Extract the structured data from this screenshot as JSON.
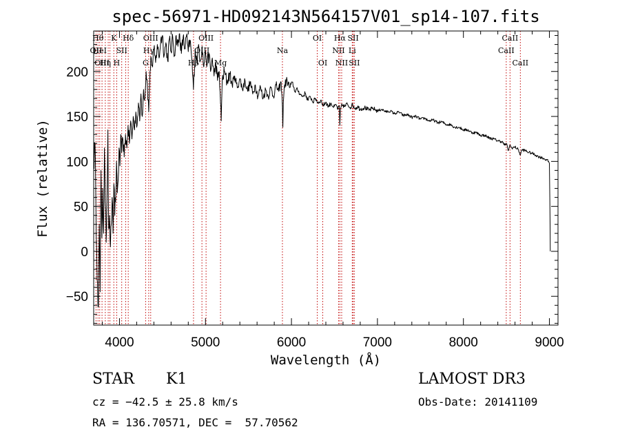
{
  "chart_data": {
    "type": "line",
    "title": "spec-56971-HD092143N564157V01_sp14-107.fits",
    "xlabel": "Wavelength (Å)",
    "ylabel": "Flux (relative)",
    "xlim": [
      3700,
      9100
    ],
    "ylim": [
      -82,
      245
    ],
    "xticks": [
      4000,
      5000,
      6000,
      7000,
      8000,
      9000
    ],
    "yticks": [
      -50,
      0,
      50,
      100,
      150,
      200
    ],
    "series": [
      {
        "name": "flux",
        "points": [
          [
            3700,
            95
          ],
          [
            3715,
            120
          ],
          [
            3725,
            60
          ],
          [
            3735,
            0
          ],
          [
            3745,
            -35
          ],
          [
            3755,
            -62
          ],
          [
            3765,
            30
          ],
          [
            3775,
            -45
          ],
          [
            3785,
            90
          ],
          [
            3795,
            15
          ],
          [
            3805,
            70
          ],
          [
            3815,
            20
          ],
          [
            3825,
            115
          ],
          [
            3835,
            55
          ],
          [
            3845,
            10
          ],
          [
            3855,
            60
          ],
          [
            3865,
            135
          ],
          [
            3875,
            25
          ],
          [
            3885,
            40
          ],
          [
            3895,
            5
          ],
          [
            3905,
            30
          ],
          [
            3915,
            60
          ],
          [
            3925,
            20
          ],
          [
            3935,
            75
          ],
          [
            3945,
            40
          ],
          [
            3955,
            55
          ],
          [
            3965,
            100
          ],
          [
            3975,
            65
          ],
          [
            3985,
            80
          ],
          [
            3995,
            115
          ],
          [
            4005,
            95
          ],
          [
            4015,
            130
          ],
          [
            4025,
            110
          ],
          [
            4040,
            125
          ],
          [
            4055,
            105
          ],
          [
            4070,
            130
          ],
          [
            4085,
            115
          ],
          [
            4100,
            140
          ],
          [
            4115,
            120
          ],
          [
            4130,
            145
          ],
          [
            4145,
            125
          ],
          [
            4160,
            150
          ],
          [
            4175,
            135
          ],
          [
            4190,
            155
          ],
          [
            4205,
            140
          ],
          [
            4220,
            165
          ],
          [
            4235,
            145
          ],
          [
            4250,
            175
          ],
          [
            4265,
            150
          ],
          [
            4280,
            180
          ],
          [
            4295,
            170
          ],
          [
            4310,
            200
          ],
          [
            4325,
            185
          ],
          [
            4340,
            155
          ],
          [
            4355,
            200
          ],
          [
            4370,
            215
          ],
          [
            4385,
            205
          ],
          [
            4400,
            225
          ],
          [
            4420,
            210
          ],
          [
            4440,
            230
          ],
          [
            4460,
            215
          ],
          [
            4480,
            235
          ],
          [
            4500,
            240
          ],
          [
            4520,
            218
          ],
          [
            4540,
            232
          ],
          [
            4560,
            212
          ],
          [
            4580,
            236
          ],
          [
            4600,
            222
          ],
          [
            4620,
            238
          ],
          [
            4640,
            218
          ],
          [
            4660,
            240
          ],
          [
            4680,
            228
          ],
          [
            4700,
            242
          ],
          [
            4720,
            220
          ],
          [
            4740,
            238
          ],
          [
            4760,
            225
          ],
          [
            4780,
            240
          ],
          [
            4800,
            222
          ],
          [
            4820,
            235
          ],
          [
            4840,
            215
          ],
          [
            4860,
            180
          ],
          [
            4880,
            225
          ],
          [
            4900,
            210
          ],
          [
            4920,
            230
          ],
          [
            4940,
            212
          ],
          [
            4960,
            228
          ],
          [
            4980,
            205
          ],
          [
            5000,
            222
          ],
          [
            5020,
            208
          ],
          [
            5040,
            220
          ],
          [
            5060,
            200
          ],
          [
            5080,
            215
          ],
          [
            5100,
            195
          ],
          [
            5120,
            210
          ],
          [
            5140,
            190
          ],
          [
            5160,
            200
          ],
          [
            5175,
            165
          ],
          [
            5183,
            145
          ],
          [
            5195,
            190
          ],
          [
            5220,
            200
          ],
          [
            5250,
            188
          ],
          [
            5280,
            198
          ],
          [
            5310,
            185
          ],
          [
            5340,
            195
          ],
          [
            5370,
            182
          ],
          [
            5400,
            192
          ],
          [
            5430,
            180
          ],
          [
            5460,
            190
          ],
          [
            5490,
            178
          ],
          [
            5520,
            188
          ],
          [
            5550,
            175
          ],
          [
            5580,
            185
          ],
          [
            5610,
            172
          ],
          [
            5640,
            183
          ],
          [
            5670,
            170
          ],
          [
            5700,
            180
          ],
          [
            5730,
            172
          ],
          [
            5760,
            182
          ],
          [
            5790,
            172
          ],
          [
            5820,
            185
          ],
          [
            5850,
            178
          ],
          [
            5880,
            188
          ],
          [
            5895,
            160
          ],
          [
            5900,
            138
          ],
          [
            5905,
            165
          ],
          [
            5920,
            185
          ],
          [
            5950,
            190
          ],
          [
            5980,
            182
          ],
          [
            6010,
            188
          ],
          [
            6040,
            178
          ],
          [
            6070,
            180
          ],
          [
            6100,
            175
          ],
          [
            6130,
            172
          ],
          [
            6160,
            176
          ],
          [
            6190,
            168
          ],
          [
            6220,
            172
          ],
          [
            6250,
            166
          ],
          [
            6280,
            170
          ],
          [
            6310,
            165
          ],
          [
            6340,
            168
          ],
          [
            6370,
            162
          ],
          [
            6400,
            166
          ],
          [
            6430,
            161
          ],
          [
            6460,
            165
          ],
          [
            6490,
            160
          ],
          [
            6520,
            163
          ],
          [
            6540,
            158
          ],
          [
            6555,
            162
          ],
          [
            6563,
            140
          ],
          [
            6570,
            158
          ],
          [
            6590,
            163
          ],
          [
            6620,
            161
          ],
          [
            6650,
            164
          ],
          [
            6680,
            160
          ],
          [
            6710,
            163
          ],
          [
            6740,
            159
          ],
          [
            6770,
            161
          ],
          [
            6800,
            158
          ],
          [
            6850,
            160
          ],
          [
            6900,
            157
          ],
          [
            6950,
            159
          ],
          [
            7000,
            156
          ],
          [
            7050,
            158
          ],
          [
            7100,
            155
          ],
          [
            7150,
            156
          ],
          [
            7200,
            153
          ],
          [
            7250,
            155
          ],
          [
            7300,
            151
          ],
          [
            7350,
            152
          ],
          [
            7400,
            149
          ],
          [
            7450,
            150
          ],
          [
            7500,
            147
          ],
          [
            7550,
            148
          ],
          [
            7600,
            145
          ],
          [
            7650,
            146
          ],
          [
            7700,
            143
          ],
          [
            7750,
            144
          ],
          [
            7800,
            141
          ],
          [
            7850,
            141
          ],
          [
            7900,
            138
          ],
          [
            7950,
            138
          ],
          [
            8000,
            135
          ],
          [
            8050,
            135
          ],
          [
            8100,
            132
          ],
          [
            8150,
            132
          ],
          [
            8200,
            129
          ],
          [
            8250,
            129
          ],
          [
            8300,
            126
          ],
          [
            8350,
            125
          ],
          [
            8400,
            123
          ],
          [
            8450,
            122
          ],
          [
            8480,
            118
          ],
          [
            8500,
            120
          ],
          [
            8520,
            112
          ],
          [
            8540,
            118
          ],
          [
            8560,
            115
          ],
          [
            8600,
            116
          ],
          [
            8640,
            113
          ],
          [
            8662,
            107
          ],
          [
            8680,
            113
          ],
          [
            8720,
            112
          ],
          [
            8760,
            110
          ],
          [
            8800,
            109
          ],
          [
            8840,
            107
          ],
          [
            8880,
            105
          ],
          [
            8920,
            104
          ],
          [
            8960,
            102
          ],
          [
            8990,
            100
          ],
          [
            9000,
            98
          ],
          [
            9005,
            60
          ],
          [
            9010,
            0
          ]
        ]
      }
    ],
    "spectral_lines": [
      {
        "wave": 3727,
        "label": "OII",
        "row": 1
      },
      {
        "wave": 3750,
        "label": "Hθ",
        "row": 0
      },
      {
        "wave": 3770,
        "label": "HeI",
        "row": 1
      },
      {
        "wave": 3797,
        "label": "OIII",
        "row": 2
      },
      {
        "wave": 3835,
        "label": "Hη",
        "row": 2
      },
      {
        "wave": 3869,
        "label": "",
        "row": 1
      },
      {
        "wave": 3889,
        "label": "",
        "row": 1
      },
      {
        "wave": 3934,
        "label": "K",
        "row": 0
      },
      {
        "wave": 3968,
        "label": "H",
        "row": 2
      },
      {
        "wave": 4026,
        "label": "SII",
        "row": 1
      },
      {
        "wave": 4072,
        "label": "",
        "row": 1
      },
      {
        "wave": 4102,
        "label": "Hδ",
        "row": 0
      },
      {
        "wave": 4304,
        "label": "G",
        "row": 2
      },
      {
        "wave": 4340,
        "label": "Hγ",
        "row": 1
      },
      {
        "wave": 4363,
        "label": "OIII",
        "row": 0
      },
      {
        "wave": 4861,
        "label": "Hβ",
        "row": 2
      },
      {
        "wave": 4959,
        "label": "OIII",
        "row": 1
      },
      {
        "wave": 5007,
        "label": "OIII",
        "row": 0
      },
      {
        "wave": 5175,
        "label": "Mg",
        "row": 2
      },
      {
        "wave": 5895,
        "label": "Na",
        "row": 1
      },
      {
        "wave": 6300,
        "label": "OI",
        "row": 0
      },
      {
        "wave": 6364,
        "label": "OI",
        "row": 2
      },
      {
        "wave": 6548,
        "label": "NII",
        "row": 1
      },
      {
        "wave": 6563,
        "label": "Hα",
        "row": 0
      },
      {
        "wave": 6584,
        "label": "NII",
        "row": 2
      },
      {
        "wave": 6707,
        "label": "Li",
        "row": 1
      },
      {
        "wave": 6717,
        "label": "SII",
        "row": 0
      },
      {
        "wave": 6731,
        "label": "SII",
        "row": 2
      },
      {
        "wave": 8498,
        "label": "CaII",
        "row": 1
      },
      {
        "wave": 8542,
        "label": "CaII",
        "row": 0
      },
      {
        "wave": 8662,
        "label": "CaII",
        "row": 2
      }
    ]
  },
  "info": {
    "class_label": "STAR",
    "subclass_label": "K1",
    "cz_text": "cz = −42.5 ± 25.8 km/s",
    "radec_text": "RA = 136.70571, DEC =  57.70562",
    "survey": "LAMOST DR3",
    "obs_date": "Obs-Date: 20141109"
  }
}
